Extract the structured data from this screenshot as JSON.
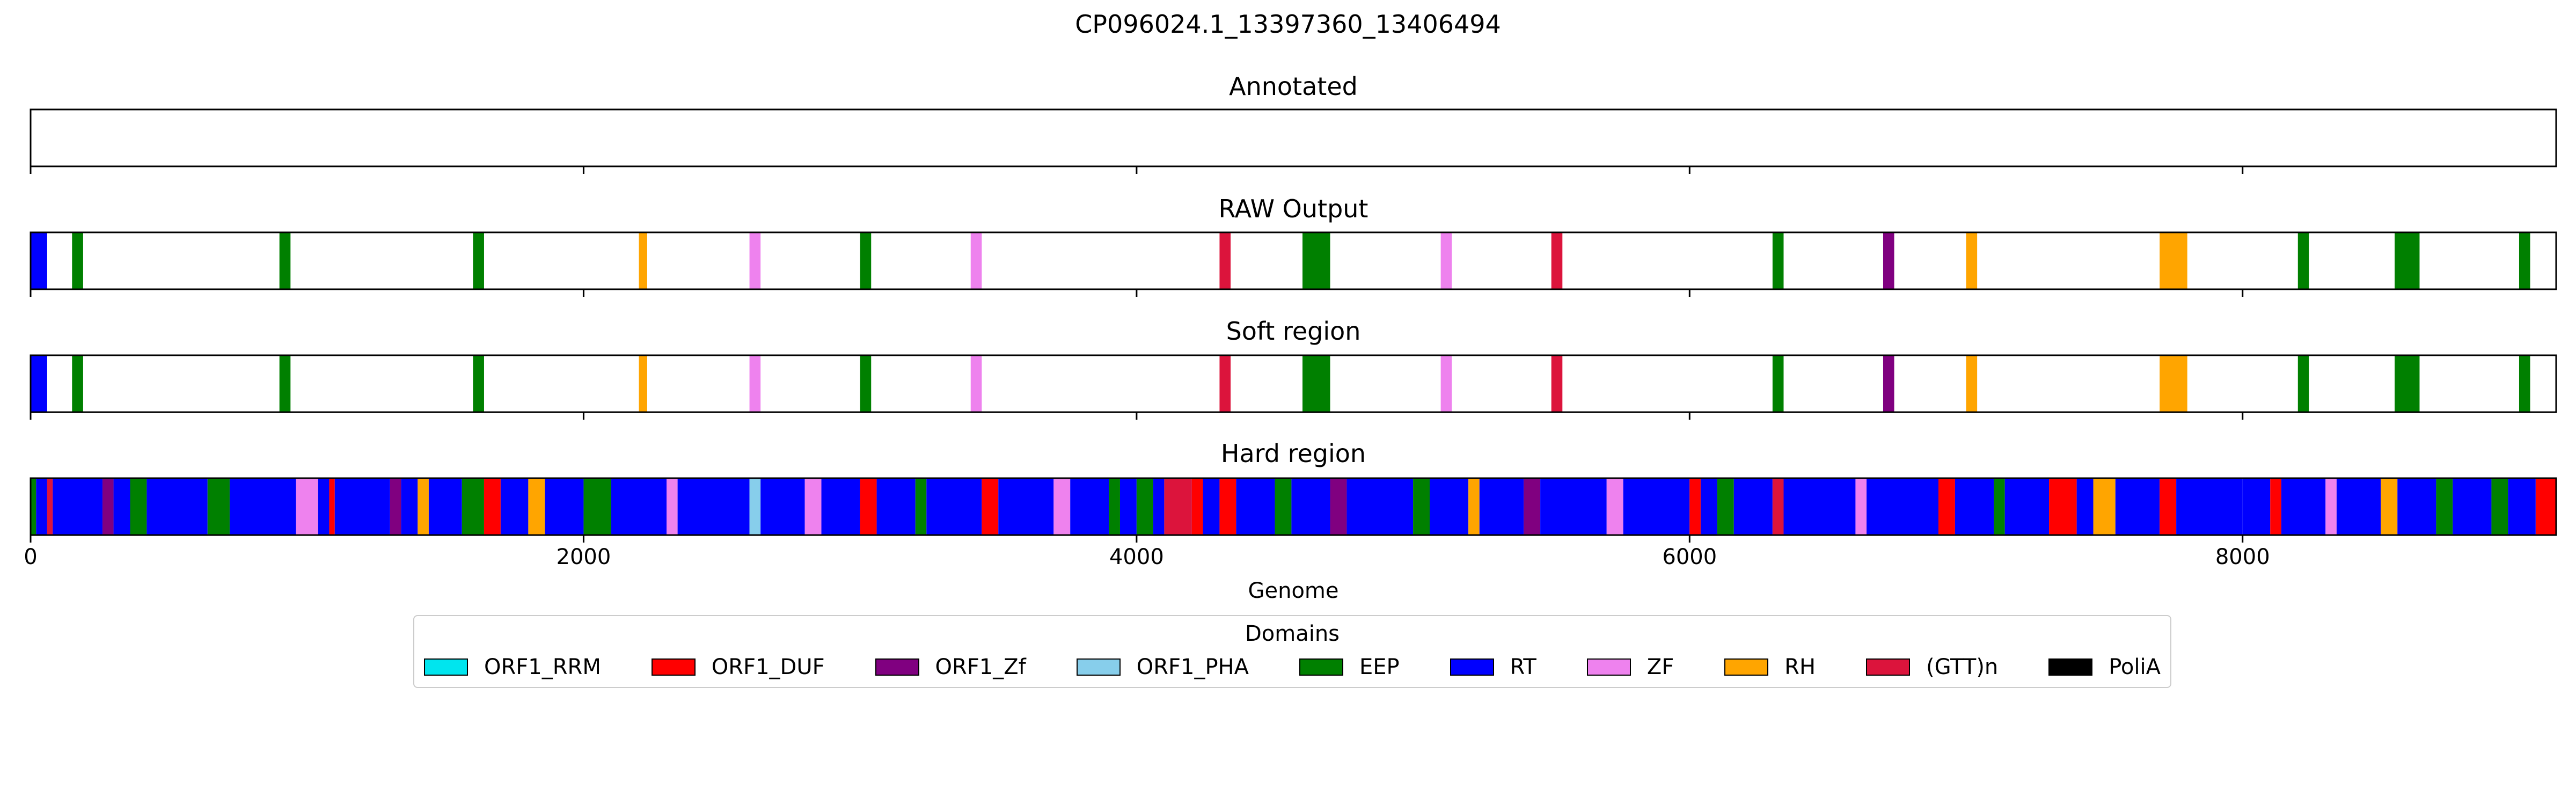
{
  "chart_data": {
    "type": "genome-track",
    "title": "CP096024.1_13397360_13406494",
    "xlabel": "Genome",
    "xlim": [
      0,
      9134
    ],
    "xticks": [
      0,
      2000,
      4000,
      6000,
      8000
    ],
    "legend": {
      "title": "Domains",
      "placement": "bottom-center",
      "entries": [
        {
          "name": "ORF1_RRM",
          "color": "#00e5ee"
        },
        {
          "name": "ORF1_DUF",
          "color": "#ff0000"
        },
        {
          "name": "ORF1_Zf",
          "color": "#800080"
        },
        {
          "name": "ORF1_PHA",
          "color": "#87ceeb"
        },
        {
          "name": "EEP",
          "color": "#008000"
        },
        {
          "name": "RT",
          "color": "#0000ff"
        },
        {
          "name": "ZF",
          "color": "#ee82ee"
        },
        {
          "name": "RH",
          "color": "#ffa500"
        },
        {
          "name": "(GTT)n",
          "color": "#dc143c"
        },
        {
          "name": "PoliA",
          "color": "#000000"
        }
      ]
    },
    "panels": [
      {
        "title": "Annotated",
        "segments": []
      },
      {
        "title": "RAW Output",
        "segments": [
          [
            0,
            60,
            "RT"
          ],
          [
            150,
            190,
            "EEP"
          ],
          [
            900,
            940,
            "EEP"
          ],
          [
            1600,
            1640,
            "EEP"
          ],
          [
            2200,
            2230,
            "RH"
          ],
          [
            2600,
            2640,
            "ZF"
          ],
          [
            3000,
            3040,
            "EEP"
          ],
          [
            3400,
            3440,
            "ZF"
          ],
          [
            4300,
            4340,
            "(GTT)n"
          ],
          [
            4600,
            4700,
            "EEP"
          ],
          [
            5100,
            5140,
            "ZF"
          ],
          [
            5500,
            5540,
            "(GTT)n"
          ],
          [
            6300,
            6340,
            "EEP"
          ],
          [
            6700,
            6740,
            "ORF1_Zf"
          ],
          [
            7000,
            7040,
            "RH"
          ],
          [
            7700,
            7800,
            "RH"
          ],
          [
            8200,
            8240,
            "EEP"
          ],
          [
            8550,
            8640,
            "EEP"
          ],
          [
            9000,
            9040,
            "EEP"
          ]
        ]
      },
      {
        "title": "Soft region",
        "segments": [
          [
            0,
            60,
            "RT"
          ],
          [
            150,
            190,
            "EEP"
          ],
          [
            900,
            940,
            "EEP"
          ],
          [
            1600,
            1640,
            "EEP"
          ],
          [
            2200,
            2230,
            "RH"
          ],
          [
            2600,
            2640,
            "ZF"
          ],
          [
            3000,
            3040,
            "EEP"
          ],
          [
            3400,
            3440,
            "ZF"
          ],
          [
            4300,
            4340,
            "(GTT)n"
          ],
          [
            4600,
            4700,
            "EEP"
          ],
          [
            5100,
            5140,
            "ZF"
          ],
          [
            5500,
            5540,
            "(GTT)n"
          ],
          [
            6300,
            6340,
            "EEP"
          ],
          [
            6700,
            6740,
            "ORF1_Zf"
          ],
          [
            7000,
            7040,
            "RH"
          ],
          [
            7700,
            7800,
            "RH"
          ],
          [
            8200,
            8240,
            "EEP"
          ],
          [
            8550,
            8640,
            "EEP"
          ],
          [
            9000,
            9040,
            "EEP"
          ]
        ]
      },
      {
        "title": "Hard region",
        "segments": [
          [
            0,
            20,
            "EEP"
          ],
          [
            20,
            60,
            "RT"
          ],
          [
            60,
            80,
            "(GTT)n"
          ],
          [
            80,
            260,
            "RT"
          ],
          [
            260,
            300,
            "ORF1_Zf"
          ],
          [
            300,
            360,
            "RT"
          ],
          [
            360,
            420,
            "EEP"
          ],
          [
            420,
            640,
            "RT"
          ],
          [
            640,
            720,
            "EEP"
          ],
          [
            720,
            960,
            "RT"
          ],
          [
            960,
            1040,
            "ZF"
          ],
          [
            1040,
            1080,
            "RT"
          ],
          [
            1080,
            1100,
            "ORF1_DUF"
          ],
          [
            1100,
            1300,
            "RT"
          ],
          [
            1300,
            1340,
            "ORF1_Zf"
          ],
          [
            1340,
            1400,
            "RT"
          ],
          [
            1400,
            1440,
            "RH"
          ],
          [
            1440,
            1560,
            "RT"
          ],
          [
            1560,
            1640,
            "EEP"
          ],
          [
            1640,
            1700,
            "ORF1_DUF"
          ],
          [
            1700,
            1800,
            "RT"
          ],
          [
            1800,
            1860,
            "RH"
          ],
          [
            1860,
            2000,
            "RT"
          ],
          [
            2000,
            2100,
            "EEP"
          ],
          [
            2100,
            2300,
            "RT"
          ],
          [
            2300,
            2340,
            "ZF"
          ],
          [
            2340,
            2600,
            "RT"
          ],
          [
            2600,
            2640,
            "ORF1_PHA"
          ],
          [
            2640,
            2800,
            "RT"
          ],
          [
            2800,
            2860,
            "ZF"
          ],
          [
            2860,
            3000,
            "RT"
          ],
          [
            3000,
            3060,
            "ORF1_DUF"
          ],
          [
            3060,
            3200,
            "RT"
          ],
          [
            3200,
            3240,
            "EEP"
          ],
          [
            3240,
            3440,
            "RT"
          ],
          [
            3440,
            3500,
            "ORF1_DUF"
          ],
          [
            3500,
            3700,
            "RT"
          ],
          [
            3700,
            3760,
            "ZF"
          ],
          [
            3760,
            3900,
            "RT"
          ],
          [
            3900,
            3940,
            "EEP"
          ],
          [
            3940,
            4000,
            "RT"
          ],
          [
            4000,
            4060,
            "EEP"
          ],
          [
            4060,
            4100,
            "RT"
          ],
          [
            4100,
            4200,
            "(GTT)n"
          ],
          [
            4200,
            4240,
            "ORF1_DUF"
          ],
          [
            4240,
            4300,
            "RT"
          ],
          [
            4300,
            4360,
            "ORF1_DUF"
          ],
          [
            4360,
            4500,
            "RT"
          ],
          [
            4500,
            4560,
            "EEP"
          ],
          [
            4560,
            4700,
            "RT"
          ],
          [
            4700,
            4760,
            "ORF1_Zf"
          ],
          [
            4760,
            5000,
            "RT"
          ],
          [
            5000,
            5060,
            "EEP"
          ],
          [
            5060,
            5200,
            "RT"
          ],
          [
            5200,
            5240,
            "RH"
          ],
          [
            5240,
            5400,
            "RT"
          ],
          [
            5400,
            5460,
            "ORF1_Zf"
          ],
          [
            5460,
            5700,
            "RT"
          ],
          [
            5700,
            5760,
            "ZF"
          ],
          [
            5760,
            6000,
            "RT"
          ],
          [
            6000,
            6040,
            "ORF1_DUF"
          ],
          [
            6040,
            6100,
            "RT"
          ],
          [
            6100,
            6160,
            "EEP"
          ],
          [
            6160,
            6300,
            "RT"
          ],
          [
            6300,
            6340,
            "(GTT)n"
          ],
          [
            6340,
            6600,
            "RT"
          ],
          [
            6600,
            6640,
            "ZF"
          ],
          [
            6640,
            6900,
            "RT"
          ],
          [
            6900,
            6960,
            "ORF1_DUF"
          ],
          [
            6960,
            7100,
            "RT"
          ],
          [
            7100,
            7140,
            "EEP"
          ],
          [
            7140,
            7300,
            "RT"
          ],
          [
            7300,
            7400,
            "ORF1_DUF"
          ],
          [
            7400,
            7460,
            "RT"
          ],
          [
            7460,
            7540,
            "RH"
          ],
          [
            7540,
            7700,
            "RT"
          ],
          [
            7700,
            7760,
            "ORF1_DUF"
          ],
          [
            7760,
            8000,
            "RT"
          ],
          [
            8000,
            8100,
            "RT"
          ],
          [
            8100,
            8140,
            "ORF1_DUF"
          ],
          [
            8140,
            8300,
            "RT"
          ],
          [
            8300,
            8340,
            "ZF"
          ],
          [
            8340,
            8500,
            "RT"
          ],
          [
            8500,
            8560,
            "RH"
          ],
          [
            8560,
            8700,
            "RT"
          ],
          [
            8700,
            8760,
            "EEP"
          ],
          [
            8760,
            8900,
            "RT"
          ],
          [
            8900,
            8960,
            "EEP"
          ],
          [
            8960,
            9060,
            "RT"
          ],
          [
            9060,
            9134,
            "ORF1_DUF"
          ]
        ]
      }
    ]
  }
}
